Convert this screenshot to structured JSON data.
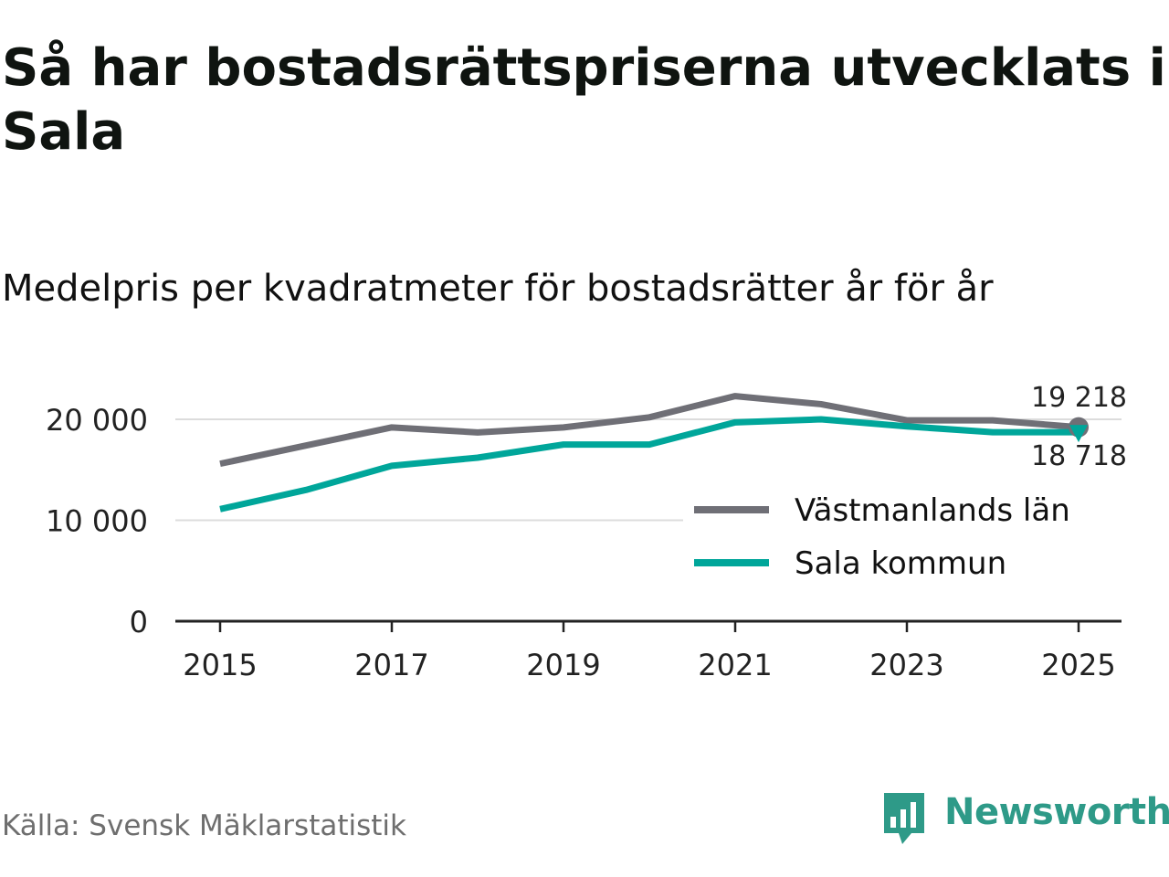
{
  "title": "Så har bostadsrättspriserna utvecklats i Sala",
  "subtitle": "Medelpris per kvadratmeter för bostadsrätter år för år",
  "source": "Källa: Svensk Mäklarstatistik",
  "brand": {
    "name": "Newsworthy",
    "color": "#2e9a88",
    "icon": "newsworthy-logo-icon"
  },
  "chart_data": {
    "type": "line",
    "title": "Medelpris per kvadratmeter för bostadsrätter år för år",
    "xlabel": "",
    "ylabel": "",
    "x": [
      2015,
      2016,
      2017,
      2018,
      2019,
      2020,
      2021,
      2022,
      2023,
      2024,
      2025
    ],
    "xticks": [
      "2015",
      "2017",
      "2019",
      "2021",
      "2023",
      "2025"
    ],
    "xtick_values": [
      2015,
      2017,
      2019,
      2021,
      2023,
      2025
    ],
    "yticks": [
      "0",
      "10 000",
      "20 000"
    ],
    "ytick_values": [
      0,
      10000,
      20000
    ],
    "ylim": [
      0,
      25000
    ],
    "grid": true,
    "legend_position": "bottom-right",
    "series": [
      {
        "name": "Västmanlands län",
        "color": "#6f6f76",
        "values": [
          15600,
          17400,
          19200,
          18700,
          19200,
          20200,
          22300,
          21500,
          19900,
          19900,
          19218
        ],
        "end_label": "19 218"
      },
      {
        "name": "Sala kommun",
        "color": "#00a69a",
        "values": [
          11100,
          13000,
          15400,
          16200,
          17500,
          17500,
          19700,
          20000,
          19300,
          18718,
          18718
        ],
        "end_label": "18 718"
      }
    ]
  }
}
